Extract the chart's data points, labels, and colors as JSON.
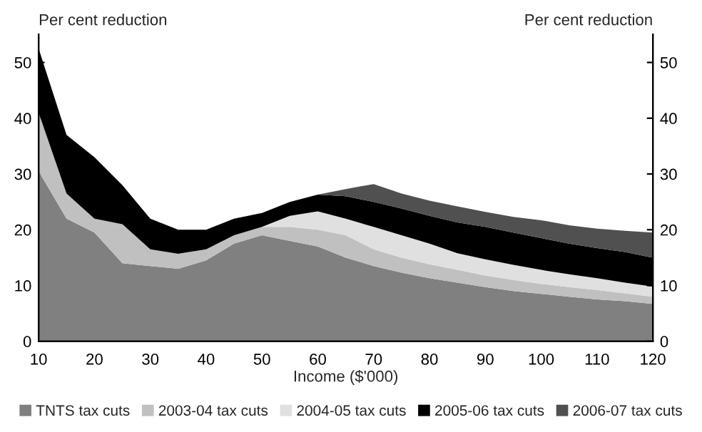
{
  "chart_data": {
    "type": "area",
    "stacked": true,
    "xlabel": "Income ($'000)",
    "ylabel": "Per cent reduction",
    "y2label": "Per cent reduction",
    "x": [
      10,
      15,
      20,
      25,
      30,
      35,
      40,
      45,
      50,
      55,
      60,
      65,
      70,
      75,
      80,
      85,
      90,
      95,
      100,
      105,
      110,
      115,
      120
    ],
    "series": [
      {
        "name": "TNTS tax cuts",
        "color": "#808080",
        "values": [
          30.5,
          22,
          19.5,
          14,
          13.5,
          13,
          14.5,
          17.5,
          19,
          18,
          17,
          15,
          13.5,
          12.3,
          11.3,
          10.5,
          9.7,
          9,
          8.5,
          8,
          7.5,
          7.2,
          6.7
        ]
      },
      {
        "name": "2003-04 tax cuts",
        "color": "#c0c0c0",
        "values": [
          10.5,
          4.5,
          2.5,
          7,
          3,
          2.7,
          2,
          1.5,
          1.5,
          2.5,
          3,
          4,
          3,
          2.7,
          2.5,
          2.3,
          2.1,
          2,
          1.8,
          1.7,
          1.7,
          1.4,
          1.3
        ]
      },
      {
        "name": "2004-05 tax cuts",
        "color": "#e0e0e0",
        "values": [
          0,
          0,
          0,
          0,
          0,
          0,
          0,
          0,
          0,
          2,
          3.3,
          3,
          4,
          4,
          3.7,
          3,
          2.9,
          2.7,
          2.5,
          2.3,
          2.1,
          1.9,
          1.8
        ]
      },
      {
        "name": "2005-06 tax cuts",
        "color": "#000000",
        "values": [
          11.5,
          10.5,
          11,
          7,
          5.5,
          4.3,
          3.5,
          3,
          2.5,
          2.5,
          3,
          4,
          4.5,
          4.8,
          5,
          5.5,
          5.8,
          5.8,
          5.7,
          5.5,
          5.4,
          5.5,
          5.2
        ]
      },
      {
        "name": "2006-07 tax cuts",
        "color": "#505050",
        "values": [
          0,
          0,
          0,
          0,
          0,
          0,
          0,
          0,
          0,
          0,
          0,
          1.3,
          3.2,
          2.7,
          2.7,
          2.9,
          2.7,
          2.8,
          3.2,
          3.3,
          3.5,
          3.8,
          4.5
        ]
      }
    ],
    "xlim": [
      10,
      120
    ],
    "xticks": [
      10,
      20,
      30,
      40,
      50,
      60,
      70,
      80,
      90,
      100,
      110,
      120
    ],
    "ylim": [
      0,
      55
    ],
    "yticks": [
      0,
      10,
      20,
      30,
      40,
      50
    ],
    "y2lim": [
      0,
      55
    ],
    "y2ticks": [
      0,
      10,
      20,
      30,
      40,
      50
    ],
    "grid": false,
    "legend": "bottom"
  }
}
